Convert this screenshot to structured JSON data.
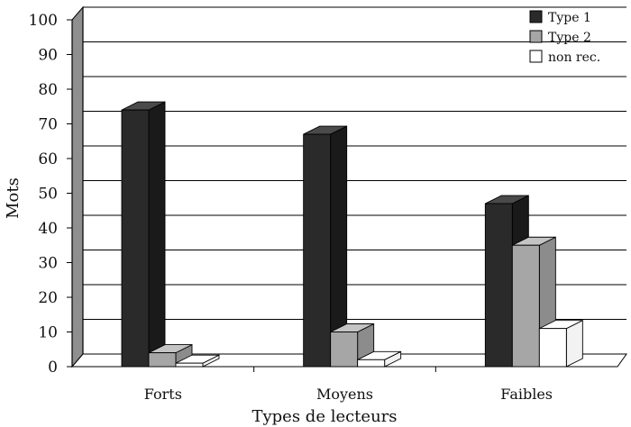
{
  "chart_data": {
    "type": "bar",
    "title": "",
    "xlabel": "Types de lecteurs",
    "ylabel": "Mots",
    "ylim": [
      0,
      100
    ],
    "yticks": [
      0,
      10,
      20,
      30,
      40,
      50,
      60,
      70,
      80,
      90,
      100
    ],
    "categories": [
      "Forts",
      "Moyens",
      "Faibles"
    ],
    "series": [
      {
        "name": "Type 1",
        "values": [
          74,
          67,
          47
        ],
        "color": "#2a2a2a"
      },
      {
        "name": "Type 2",
        "values": [
          4,
          10,
          35
        ],
        "color": "#a6a6a6"
      },
      {
        "name": "non rec.",
        "values": [
          1,
          2,
          11
        ],
        "color": "#ffffff"
      }
    ],
    "grid": true,
    "legend_position": "top-right",
    "style": "3d"
  }
}
